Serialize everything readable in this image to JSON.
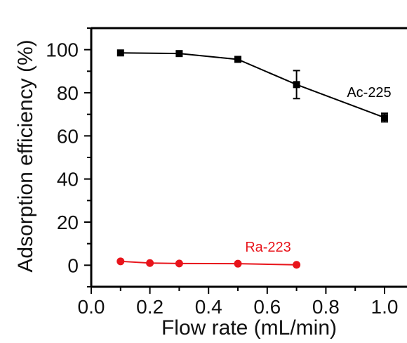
{
  "chart_data": {
    "type": "line",
    "xlabel": "Flow rate (mL/min)",
    "ylabel": "Adsorption efficiency (%)",
    "xlim": [
      0.0,
      1.0
    ],
    "ylim": [
      -10,
      110
    ],
    "xticks": [
      "0.0",
      "0.2",
      "0.4",
      "0.6",
      "0.8",
      "1.0"
    ],
    "yticks": [
      "0",
      "20",
      "40",
      "60",
      "80",
      "100"
    ],
    "grid": false,
    "series": [
      {
        "name": "Ac-225",
        "color": "#000000",
        "marker": "square",
        "x": [
          0.1,
          0.3,
          0.5,
          0.7,
          1.0
        ],
        "y": [
          98.5,
          98.2,
          95.5,
          83.8,
          68.5
        ],
        "error": [
          0,
          0,
          0,
          6.5,
          2.0
        ]
      },
      {
        "name": "Ra-223",
        "color": "#e8141b",
        "marker": "circle",
        "x": [
          0.1,
          0.2,
          0.3,
          0.5,
          0.7
        ],
        "y": [
          1.8,
          1.0,
          0.8,
          0.7,
          0.2
        ],
        "error": [
          0,
          0,
          0,
          0,
          0
        ]
      }
    ]
  }
}
